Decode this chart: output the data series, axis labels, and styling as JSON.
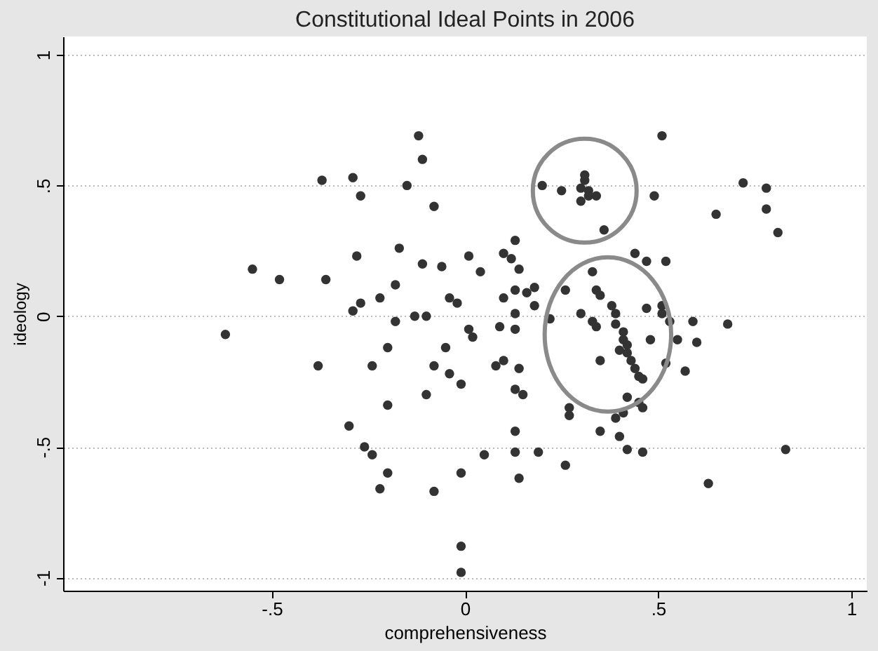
{
  "chart_data": {
    "type": "scatter",
    "title": "Constitutional Ideal Points in 2006",
    "xlabel": "comprehensiveness",
    "ylabel": "ideology",
    "xlim": [
      -1.04,
      1.04
    ],
    "ylim": [
      -1.05,
      1.07
    ],
    "xticks": [
      {
        "value": -0.5,
        "label": "-.5"
      },
      0,
      {
        "value": 0.5,
        "label": ".5"
      },
      1
    ],
    "yticks": [
      -1,
      {
        "value": -0.5,
        "label": "-.5"
      },
      0,
      {
        "value": 0.5,
        "label": ".5"
      },
      1
    ],
    "grid": "y",
    "marker": "circle",
    "series": [
      {
        "color": "#333333",
        "x": [
          -0.12,
          -0.11,
          -0.37,
          -0.29,
          -0.27,
          -0.15,
          -0.55,
          -0.48,
          -0.36,
          -0.28,
          -0.17,
          -0.11,
          -0.18,
          -0.22,
          -0.27,
          -0.29,
          -0.18,
          -0.13,
          -0.1,
          -0.62,
          -0.2,
          -0.38,
          -0.24,
          -0.1,
          -0.2,
          -0.08,
          -0.06,
          0.01,
          0.04,
          0.13,
          0.1,
          0.12,
          0.14,
          0.13,
          0.18,
          0.16,
          -0.04,
          -0.02,
          0.1,
          0.18,
          0.13,
          0.09,
          0.13,
          0.01,
          0.02,
          -0.05,
          -0.08,
          -0.04,
          0.08,
          0.1,
          0.14,
          -0.01,
          0.13,
          0.15,
          0.2,
          0.25,
          0.31,
          0.3,
          0.32,
          0.32,
          0.3,
          0.34,
          0.31,
          0.36,
          0.51,
          0.49,
          0.65,
          0.72,
          0.78,
          0.78,
          0.81,
          0.44,
          0.47,
          0.52,
          0.33,
          0.26,
          0.34,
          0.35,
          0.3,
          0.22,
          0.33,
          0.34,
          0.38,
          0.39,
          0.39,
          0.41,
          0.41,
          0.42,
          0.42,
          0.43,
          0.44,
          0.45,
          0.46,
          0.4,
          0.47,
          0.51,
          0.51,
          0.53,
          0.48,
          0.55,
          0.59,
          0.6,
          0.68,
          0.35,
          0.52,
          0.57,
          0.42,
          0.45,
          0.27,
          0.27,
          0.35,
          0.39,
          0.41,
          0.46,
          0.13,
          0.13,
          0.19,
          0.05,
          -0.01,
          -0.08,
          0.14,
          0.26,
          0.4,
          0.42,
          0.46,
          0.63,
          0.83,
          -0.01,
          -0.01,
          -0.3,
          -0.26,
          -0.24,
          -0.2,
          -0.22
        ],
        "values": [
          0.69,
          0.6,
          0.52,
          0.53,
          0.46,
          0.5,
          0.18,
          0.14,
          0.14,
          0.23,
          0.26,
          0.2,
          0.12,
          0.07,
          0.05,
          0.02,
          -0.02,
          0.0,
          0.0,
          -0.07,
          -0.12,
          -0.19,
          -0.19,
          -0.3,
          -0.34,
          0.42,
          0.19,
          0.23,
          0.17,
          0.29,
          0.24,
          0.22,
          0.18,
          0.1,
          0.11,
          0.09,
          0.07,
          0.05,
          0.07,
          0.04,
          0.01,
          -0.04,
          -0.05,
          -0.05,
          -0.08,
          -0.12,
          -0.19,
          -0.22,
          -0.19,
          -0.17,
          -0.2,
          -0.26,
          -0.28,
          -0.3,
          0.5,
          0.48,
          0.52,
          0.49,
          0.48,
          0.46,
          0.44,
          0.46,
          0.54,
          0.33,
          0.69,
          0.46,
          0.39,
          0.51,
          0.49,
          0.41,
          0.32,
          0.24,
          0.21,
          0.21,
          0.17,
          0.1,
          0.1,
          0.08,
          0.01,
          -0.01,
          -0.02,
          -0.04,
          0.04,
          0.01,
          -0.03,
          -0.06,
          -0.09,
          -0.11,
          -0.14,
          -0.17,
          -0.2,
          -0.23,
          -0.24,
          -0.13,
          0.03,
          0.04,
          0.01,
          -0.02,
          -0.09,
          -0.09,
          -0.02,
          -0.1,
          -0.03,
          -0.17,
          -0.18,
          -0.21,
          -0.31,
          -0.33,
          -0.35,
          -0.38,
          -0.44,
          -0.39,
          -0.37,
          -0.35,
          -0.44,
          -0.52,
          -0.52,
          -0.53,
          -0.6,
          -0.67,
          -0.62,
          -0.57,
          -0.46,
          -0.51,
          -0.52,
          -0.64,
          -0.51,
          -0.88,
          -0.98,
          -0.42,
          -0.5,
          -0.53,
          -0.6,
          -0.66
        ]
      }
    ]
  }
}
